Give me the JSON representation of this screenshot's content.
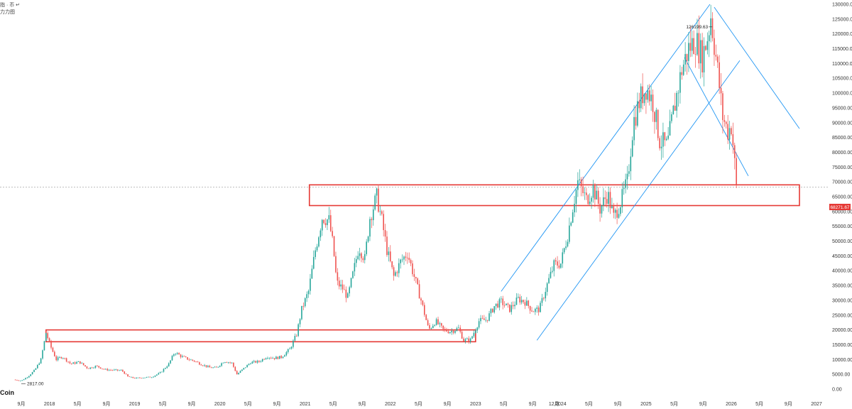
{
  "corner": {
    "line1": "指 · 币 ↵",
    "line2": "力力图"
  },
  "brand": "Coin",
  "price_tag": "68271.67",
  "colors": {
    "up": "#26a69a",
    "down": "#ef5350",
    "channel": "#2196f3",
    "box": "#e53935",
    "price_line": "#999999",
    "tag": "#e53935"
  },
  "chart_data": {
    "type": "candlestick",
    "title": "",
    "xlabel": "",
    "ylabel": "",
    "ylim": [
      0,
      130000
    ],
    "grid": false,
    "y_ticks": [
      130000,
      125000,
      120000,
      115000,
      110000,
      105000,
      100000,
      95000,
      90000,
      85000,
      80000,
      75000,
      70000,
      65000,
      60000,
      55000,
      50000,
      45000,
      40000,
      35000,
      30000,
      25000,
      20000,
      15000,
      10000,
      5000,
      0
    ],
    "y_tick_labels": [
      "130000.00",
      "125000.00",
      "120000.00",
      "115000.00",
      "110000.00",
      "105000.00",
      "100000.00",
      "95000.00",
      "90000.00",
      "85000.00",
      "80000.00",
      "75000.00",
      "70000.00",
      "65000.00",
      "60000.00",
      "55000.00",
      "50000.00",
      "45000.00",
      "40000.00",
      "35000.00",
      "30000.00",
      "25000.00",
      "20000.00",
      "15000.00",
      "10000.00",
      "5000.00",
      "0.00"
    ],
    "x_ticks": [
      {
        "t": 2017.67,
        "label": "9月"
      },
      {
        "t": 2018.0,
        "label": "2018"
      },
      {
        "t": 2018.33,
        "label": "5月"
      },
      {
        "t": 2018.67,
        "label": "9月"
      },
      {
        "t": 2019.0,
        "label": "2019"
      },
      {
        "t": 2019.33,
        "label": "5月"
      },
      {
        "t": 2019.67,
        "label": "9月"
      },
      {
        "t": 2020.0,
        "label": "2020"
      },
      {
        "t": 2020.33,
        "label": "5月"
      },
      {
        "t": 2020.67,
        "label": "9月"
      },
      {
        "t": 2021.0,
        "label": "2021"
      },
      {
        "t": 2021.33,
        "label": "5月"
      },
      {
        "t": 2021.67,
        "label": "9月"
      },
      {
        "t": 2022.0,
        "label": "2022"
      },
      {
        "t": 2022.33,
        "label": "5月"
      },
      {
        "t": 2022.67,
        "label": "9月"
      },
      {
        "t": 2023.0,
        "label": "2023"
      },
      {
        "t": 2023.33,
        "label": "5月"
      },
      {
        "t": 2023.67,
        "label": "9月"
      },
      {
        "t": 2023.92,
        "label": "12月"
      },
      {
        "t": 2024.0,
        "label": "2024"
      },
      {
        "t": 2024.33,
        "label": "5月"
      },
      {
        "t": 2024.67,
        "label": "9月"
      },
      {
        "t": 2025.0,
        "label": "2025"
      },
      {
        "t": 2025.33,
        "label": "5月"
      },
      {
        "t": 2025.67,
        "label": "9月"
      },
      {
        "t": 2026.0,
        "label": "2026"
      },
      {
        "t": 2026.33,
        "label": "5月"
      },
      {
        "t": 2026.67,
        "label": "9月"
      },
      {
        "t": 2027.0,
        "label": "2027"
      }
    ],
    "series": [
      {
        "name": "",
        "points": [
          [
            2017.58,
            3200
          ],
          [
            2017.67,
            2817
          ],
          [
            2017.75,
            4300
          ],
          [
            2017.83,
            6500
          ],
          [
            2017.9,
            10000
          ],
          [
            2017.96,
            19000
          ],
          [
            2018.02,
            14000
          ],
          [
            2018.08,
            10000
          ],
          [
            2018.15,
            11000
          ],
          [
            2018.25,
            8500
          ],
          [
            2018.35,
            9200
          ],
          [
            2018.45,
            7000
          ],
          [
            2018.55,
            7800
          ],
          [
            2018.65,
            6600
          ],
          [
            2018.75,
            6400
          ],
          [
            2018.85,
            6300
          ],
          [
            2018.92,
            4200
          ],
          [
            2019.0,
            3700
          ],
          [
            2019.1,
            3900
          ],
          [
            2019.2,
            4100
          ],
          [
            2019.3,
            5500
          ],
          [
            2019.4,
            8500
          ],
          [
            2019.47,
            12500
          ],
          [
            2019.55,
            11000
          ],
          [
            2019.62,
            10200
          ],
          [
            2019.7,
            9500
          ],
          [
            2019.78,
            8400
          ],
          [
            2019.88,
            7300
          ],
          [
            2019.96,
            7200
          ],
          [
            2020.05,
            9500
          ],
          [
            2020.14,
            8800
          ],
          [
            2020.2,
            5000
          ],
          [
            2020.28,
            7000
          ],
          [
            2020.36,
            9000
          ],
          [
            2020.46,
            9300
          ],
          [
            2020.55,
            11000
          ],
          [
            2020.64,
            10500
          ],
          [
            2020.72,
            10800
          ],
          [
            2020.82,
            13500
          ],
          [
            2020.9,
            18500
          ],
          [
            2020.96,
            27000
          ],
          [
            2021.04,
            33000
          ],
          [
            2021.12,
            47000
          ],
          [
            2021.2,
            58000
          ],
          [
            2021.28,
            57000
          ],
          [
            2021.33,
            48000
          ],
          [
            2021.37,
            36000
          ],
          [
            2021.44,
            34000
          ],
          [
            2021.5,
            31000
          ],
          [
            2021.57,
            40000
          ],
          [
            2021.63,
            48000
          ],
          [
            2021.7,
            44000
          ],
          [
            2021.76,
            58000
          ],
          [
            2021.84,
            65000
          ],
          [
            2021.9,
            57000
          ],
          [
            2021.96,
            47000
          ],
          [
            2022.04,
            38000
          ],
          [
            2022.12,
            43000
          ],
          [
            2022.2,
            46000
          ],
          [
            2022.28,
            38000
          ],
          [
            2022.36,
            30000
          ],
          [
            2022.45,
            20000
          ],
          [
            2022.53,
            23000
          ],
          [
            2022.62,
            20000
          ],
          [
            2022.7,
            19500
          ],
          [
            2022.8,
            20500
          ],
          [
            2022.86,
            16500
          ],
          [
            2022.94,
            16600
          ],
          [
            2023.04,
            23000
          ],
          [
            2023.13,
            23500
          ],
          [
            2023.22,
            28000
          ],
          [
            2023.3,
            29500
          ],
          [
            2023.4,
            27000
          ],
          [
            2023.5,
            30500
          ],
          [
            2023.58,
            29500
          ],
          [
            2023.67,
            26500
          ],
          [
            2023.75,
            27000
          ],
          [
            2023.83,
            34500
          ],
          [
            2023.92,
            42000
          ],
          [
            2024.0,
            42500
          ],
          [
            2024.08,
            52000
          ],
          [
            2024.15,
            63000
          ],
          [
            2024.2,
            70000
          ],
          [
            2024.3,
            64000
          ],
          [
            2024.38,
            68000
          ],
          [
            2024.46,
            61000
          ],
          [
            2024.55,
            66000
          ],
          [
            2024.62,
            58000
          ],
          [
            2024.7,
            63000
          ],
          [
            2024.78,
            70000
          ],
          [
            2024.85,
            90000
          ],
          [
            2024.93,
            98000
          ],
          [
            2025.0,
            102000
          ],
          [
            2025.08,
            97000
          ],
          [
            2025.16,
            84000
          ],
          [
            2025.25,
            82000
          ],
          [
            2025.33,
            95000
          ],
          [
            2025.42,
            108000
          ],
          [
            2025.5,
            115000
          ],
          [
            2025.58,
            118000
          ],
          [
            2025.66,
            112000
          ],
          [
            2025.73,
            120000
          ],
          [
            2025.76,
            126199.63
          ],
          [
            2025.83,
            110000
          ],
          [
            2025.9,
            92000
          ],
          [
            2025.96,
            87000
          ],
          [
            2026.0,
            89000
          ],
          [
            2026.03,
            80000
          ],
          [
            2026.06,
            68271.67
          ]
        ]
      }
    ],
    "annotations": [
      {
        "text": "126199.63",
        "t": 2025.76,
        "value": 126199.63,
        "kind": "high"
      },
      {
        "text": "2817.00",
        "t": 2017.67,
        "value": 2817,
        "kind": "low"
      }
    ],
    "last_price": 68271.67,
    "zones": [
      {
        "t0": 2017.96,
        "t1": 2023.0,
        "low": 16000,
        "high": 20000
      },
      {
        "t0": 2021.05,
        "t1": 2026.8,
        "low": 62000,
        "high": 69000
      }
    ],
    "trend_lines": [
      {
        "t0": 2023.3,
        "v0": 33000,
        "t1": 2025.75,
        "v1": 130000
      },
      {
        "t0": 2023.72,
        "v0": 16500,
        "t1": 2026.1,
        "v1": 111000
      },
      {
        "t0": 2025.8,
        "v0": 129000,
        "t1": 2026.8,
        "v1": 88000
      },
      {
        "t0": 2025.45,
        "v0": 112000,
        "t1": 2026.2,
        "v1": 72000
      }
    ]
  }
}
